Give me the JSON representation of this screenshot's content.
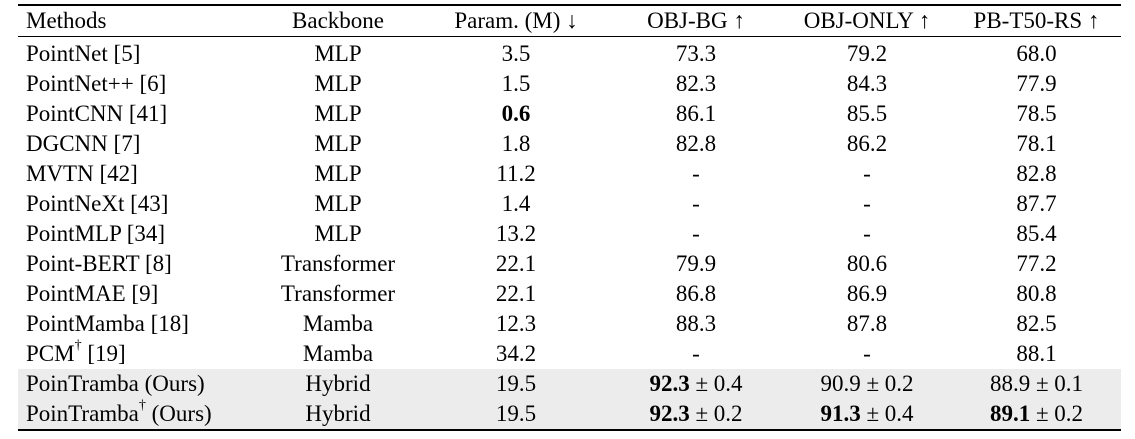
{
  "table": {
    "headers": [
      "Methods",
      "Backbone",
      "Param. (M) ↓",
      "OBJ-BG ↑",
      "OBJ-ONLY ↑",
      "PB-T50-RS ↑"
    ],
    "rows": [
      {
        "method": "PointNet [5]",
        "sup": "",
        "method_suffix": "",
        "backbone": "MLP",
        "param": "3.5",
        "param_bold": false,
        "objbg": "73.3",
        "objbg_bold": false,
        "objbg_pm": "",
        "objonly": "79.2",
        "objonly_bold": false,
        "objonly_pm": "",
        "pb": "68.0",
        "pb_bold": false,
        "pb_pm": ""
      },
      {
        "method": "PointNet++ [6]",
        "sup": "",
        "method_suffix": "",
        "backbone": "MLP",
        "param": "1.5",
        "param_bold": false,
        "objbg": "82.3",
        "objbg_bold": false,
        "objbg_pm": "",
        "objonly": "84.3",
        "objonly_bold": false,
        "objonly_pm": "",
        "pb": "77.9",
        "pb_bold": false,
        "pb_pm": ""
      },
      {
        "method": "PointCNN [41]",
        "sup": "",
        "method_suffix": "",
        "backbone": "MLP",
        "param": "0.6",
        "param_bold": true,
        "objbg": "86.1",
        "objbg_bold": false,
        "objbg_pm": "",
        "objonly": "85.5",
        "objonly_bold": false,
        "objonly_pm": "",
        "pb": "78.5",
        "pb_bold": false,
        "pb_pm": ""
      },
      {
        "method": "DGCNN [7]",
        "sup": "",
        "method_suffix": "",
        "backbone": "MLP",
        "param": "1.8",
        "param_bold": false,
        "objbg": "82.8",
        "objbg_bold": false,
        "objbg_pm": "",
        "objonly": "86.2",
        "objonly_bold": false,
        "objonly_pm": "",
        "pb": "78.1",
        "pb_bold": false,
        "pb_pm": ""
      },
      {
        "method": "MVTN [42]",
        "sup": "",
        "method_suffix": "",
        "backbone": "MLP",
        "param": "11.2",
        "param_bold": false,
        "objbg": "-",
        "objbg_bold": false,
        "objbg_pm": "",
        "objonly": "-",
        "objonly_bold": false,
        "objonly_pm": "",
        "pb": "82.8",
        "pb_bold": false,
        "pb_pm": ""
      },
      {
        "method": "PointNeXt [43]",
        "sup": "",
        "method_suffix": "",
        "backbone": "MLP",
        "param": "1.4",
        "param_bold": false,
        "objbg": "-",
        "objbg_bold": false,
        "objbg_pm": "",
        "objonly": "-",
        "objonly_bold": false,
        "objonly_pm": "",
        "pb": "87.7",
        "pb_bold": false,
        "pb_pm": ""
      },
      {
        "method": "PointMLP [34]",
        "sup": "",
        "method_suffix": "",
        "backbone": "MLP",
        "param": "13.2",
        "param_bold": false,
        "objbg": "-",
        "objbg_bold": false,
        "objbg_pm": "",
        "objonly": "-",
        "objonly_bold": false,
        "objonly_pm": "",
        "pb": "85.4",
        "pb_bold": false,
        "pb_pm": ""
      },
      {
        "method": "Point-BERT [8]",
        "sup": "",
        "method_suffix": "",
        "backbone": "Transformer",
        "param": "22.1",
        "param_bold": false,
        "objbg": "79.9",
        "objbg_bold": false,
        "objbg_pm": "",
        "objonly": "80.6",
        "objonly_bold": false,
        "objonly_pm": "",
        "pb": "77.2",
        "pb_bold": false,
        "pb_pm": ""
      },
      {
        "method": "PointMAE [9]",
        "sup": "",
        "method_suffix": "",
        "backbone": "Transformer",
        "param": "22.1",
        "param_bold": false,
        "objbg": "86.8",
        "objbg_bold": false,
        "objbg_pm": "",
        "objonly": "86.9",
        "objonly_bold": false,
        "objonly_pm": "",
        "pb": "80.8",
        "pb_bold": false,
        "pb_pm": ""
      },
      {
        "method": "PointMamba [18]",
        "sup": "",
        "method_suffix": "",
        "backbone": "Mamba",
        "param": "12.3",
        "param_bold": false,
        "objbg": "88.3",
        "objbg_bold": false,
        "objbg_pm": "",
        "objonly": "87.8",
        "objonly_bold": false,
        "objonly_pm": "",
        "pb": "82.5",
        "pb_bold": false,
        "pb_pm": ""
      },
      {
        "method": "PCM",
        "sup": "†",
        "method_suffix": " [19]",
        "backbone": "Mamba",
        "param": "34.2",
        "param_bold": false,
        "objbg": "-",
        "objbg_bold": false,
        "objbg_pm": "",
        "objonly": "-",
        "objonly_bold": false,
        "objonly_pm": "",
        "pb": "88.1",
        "pb_bold": false,
        "pb_pm": ""
      },
      {
        "method": "PoinTramba (Ours)",
        "sup": "",
        "method_suffix": "",
        "backbone": "Hybrid",
        "param": "19.5",
        "param_bold": false,
        "objbg": "92.3",
        "objbg_bold": true,
        "objbg_pm": " ± 0.4",
        "objonly": "90.9",
        "objonly_bold": false,
        "objonly_pm": " ± 0.2",
        "pb": "88.9",
        "pb_bold": false,
        "pb_pm": " ± 0.1",
        "ours": true
      },
      {
        "method": "PoinTramba",
        "sup": "†",
        "method_suffix": " (Ours)",
        "backbone": "Hybrid",
        "param": "19.5",
        "param_bold": false,
        "objbg": "92.3",
        "objbg_bold": true,
        "objbg_pm": " ± 0.2",
        "objonly": "91.3",
        "objonly_bold": true,
        "objonly_pm": " ± 0.4",
        "pb": "89.1",
        "pb_bold": true,
        "pb_pm": " ± 0.2",
        "ours": true
      }
    ]
  }
}
